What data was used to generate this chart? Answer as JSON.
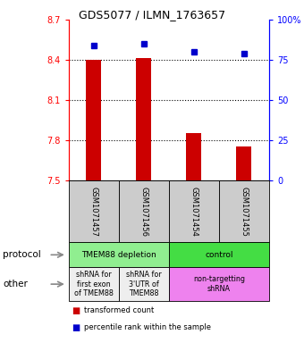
{
  "title": "GDS5077 / ILMN_1763657",
  "samples": [
    "GSM1071457",
    "GSM1071456",
    "GSM1071454",
    "GSM1071455"
  ],
  "red_values": [
    8.4,
    8.41,
    7.855,
    7.755
  ],
  "blue_values": [
    84,
    85,
    80,
    79
  ],
  "ylim_left": [
    7.5,
    8.7
  ],
  "ylim_right": [
    0,
    100
  ],
  "yticks_left": [
    7.5,
    7.8,
    8.1,
    8.4,
    8.7
  ],
  "yticks_right": [
    0,
    25,
    50,
    75,
    100
  ],
  "ytick_labels_right": [
    "0",
    "25",
    "50",
    "75",
    "100%"
  ],
  "bar_bottom": 7.5,
  "protocol_groups": [
    {
      "label": "TMEM88 depletion",
      "cols": [
        0,
        1
      ],
      "color": "#90ee90"
    },
    {
      "label": "control",
      "cols": [
        2,
        3
      ],
      "color": "#44dd44"
    }
  ],
  "other_groups": [
    {
      "label": "shRNA for\nfirst exon\nof TMEM88",
      "cols": [
        0,
        0
      ],
      "color": "#eeeeee"
    },
    {
      "label": "shRNA for\n3'UTR of\nTMEM88",
      "cols": [
        1,
        1
      ],
      "color": "#eeeeee"
    },
    {
      "label": "non-targetting\nshRNA",
      "cols": [
        2,
        3
      ],
      "color": "#ee82ee"
    }
  ],
  "bar_color": "#cc0000",
  "dot_color": "#0000cc",
  "sample_box_color": "#cccccc"
}
